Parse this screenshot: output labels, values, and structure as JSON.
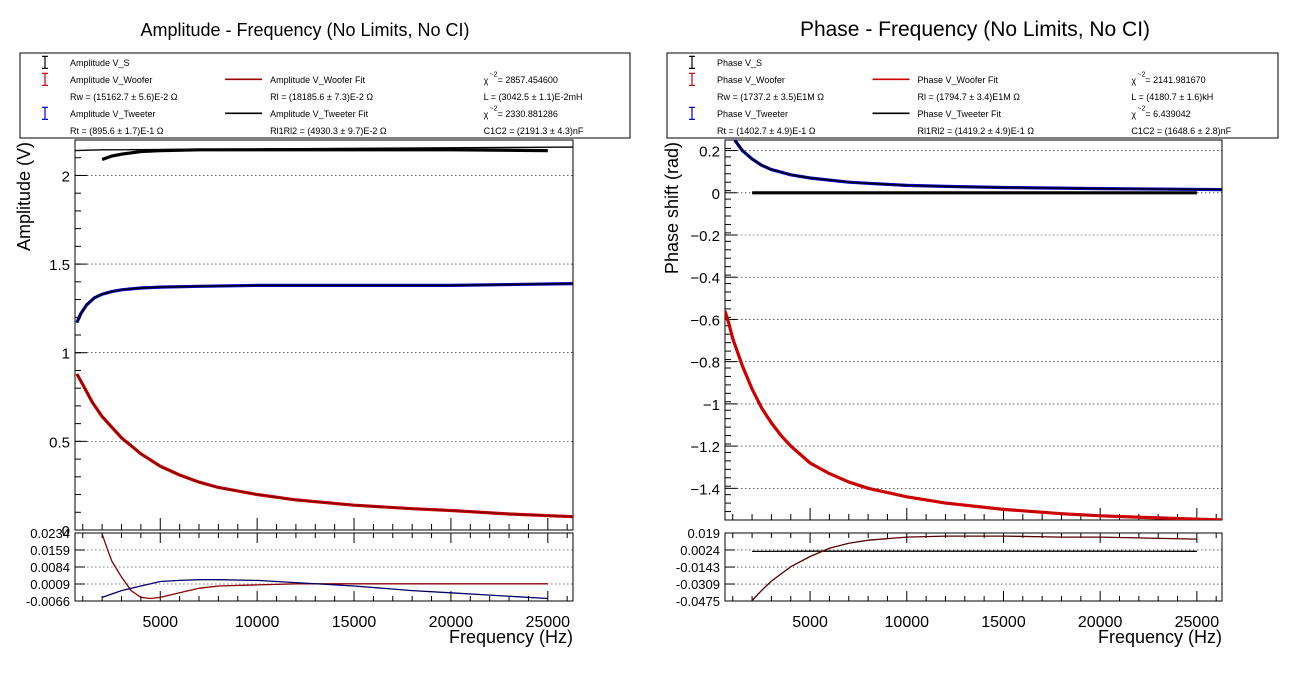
{
  "chart_data": [
    {
      "type": "line",
      "title": "Amplitude - Frequency (No Limits, No CI)",
      "xlabel": "Frequency (Hz)",
      "ylabel": "Amplitude (V)",
      "xlim": [
        600,
        26300
      ],
      "ylim": [
        0,
        2.2
      ],
      "x_ticks": [
        5000,
        10000,
        15000,
        20000,
        25000
      ],
      "x_tick_labels": [
        "5000",
        "10000",
        "15000",
        "20000",
        "25000"
      ],
      "y_ticks": [
        0,
        0.5,
        1,
        1.5,
        2
      ],
      "y_tick_labels": [
        "0",
        "0.5",
        "1",
        "1.5",
        "2"
      ],
      "grid": true,
      "legend_position": "top",
      "legend": {
        "rows": [
          [
            {
              "marker": "err",
              "color": "#000000",
              "text": "Amplitude V_S"
            }
          ],
          [
            {
              "marker": "err",
              "color": "#cc0000",
              "text": "Amplitude V_Woofer"
            },
            {
              "marker": "line",
              "color": "#990000",
              "text": "Amplitude V_Woofer Fit"
            },
            {
              "chi": true,
              "text": "= 2857.454600"
            }
          ],
          [
            {
              "text": "Rw = (15162.7       ± 5.6)E-2   Ω"
            },
            {
              "text": "Rl = (18185.6       ± 7.3)E-2   Ω"
            },
            {
              "text": "L = (3042.5       ± 1.1)E-2mH"
            }
          ],
          [
            {
              "marker": "err",
              "color": "#0000cc",
              "text": "Amplitude V_Tweeter"
            },
            {
              "marker": "line",
              "color": "#000000",
              "text": "Amplitude V_Tweeter Fit"
            },
            {
              "chi": true,
              "text": "= 2330.881286"
            }
          ],
          [
            {
              "text": "Rt = (895.6       ± 1.7)E-1   Ω"
            },
            {
              "text": "Rl1Rl2 = (4930.3       ± 9.7)E-2   Ω"
            },
            {
              "text": "C1C2 = (2191.3       ± 4.3)nF"
            }
          ]
        ]
      },
      "series": [
        {
          "name": "Amplitude V_S",
          "color": "#000000",
          "x": [
            2000,
            2500,
            3000,
            4000,
            5000,
            7000,
            10000,
            15000,
            20000,
            25000
          ],
          "y": [
            2.09,
            2.11,
            2.12,
            2.135,
            2.14,
            2.145,
            2.145,
            2.145,
            2.145,
            2.14
          ]
        },
        {
          "name": "Amplitude V_Tweeter",
          "color": "#0000cc",
          "x": [
            700,
            900,
            1200,
            1600,
            2000,
            2500,
            3000,
            4000,
            5000,
            7000,
            10000,
            15000,
            20000,
            26300
          ],
          "y": [
            1.17,
            1.22,
            1.27,
            1.31,
            1.33,
            1.345,
            1.355,
            1.365,
            1.37,
            1.375,
            1.38,
            1.38,
            1.38,
            1.39
          ]
        },
        {
          "name": "Amplitude V_Woofer",
          "color": "#cc0000",
          "x": [
            700,
            1000,
            1500,
            2000,
            2500,
            3000,
            4000,
            5000,
            6000,
            7000,
            8000,
            10000,
            12000,
            15000,
            18000,
            20000,
            23000,
            26300
          ],
          "y": [
            0.88,
            0.82,
            0.72,
            0.64,
            0.58,
            0.52,
            0.43,
            0.36,
            0.31,
            0.27,
            0.24,
            0.2,
            0.17,
            0.14,
            0.12,
            0.11,
            0.09,
            0.075
          ]
        },
        {
          "name": "Amplitude V_Woofer Fit",
          "color": "#880000",
          "x": [
            700,
            1000,
            1500,
            2000,
            2500,
            3000,
            4000,
            5000,
            6000,
            7000,
            8000,
            10000,
            12000,
            15000,
            18000,
            20000,
            23000,
            26300
          ],
          "y": [
            0.88,
            0.82,
            0.72,
            0.64,
            0.58,
            0.52,
            0.43,
            0.36,
            0.31,
            0.27,
            0.24,
            0.2,
            0.17,
            0.14,
            0.12,
            0.11,
            0.09,
            0.075
          ]
        },
        {
          "name": "Amplitude V_Tweeter Fit",
          "color": "#000000",
          "x": [
            700,
            900,
            1200,
            1600,
            2000,
            2500,
            3000,
            4000,
            5000,
            7000,
            10000,
            15000,
            20000,
            26300
          ],
          "y": [
            1.17,
            1.22,
            1.27,
            1.31,
            1.33,
            1.345,
            1.355,
            1.365,
            1.37,
            1.375,
            1.38,
            1.38,
            1.38,
            1.39
          ]
        },
        {
          "name": "Amplitude V_S Fit",
          "color": "#000000",
          "x": [
            600,
            2000,
            26300
          ],
          "y": [
            2.14,
            2.145,
            2.16
          ]
        }
      ],
      "residual": {
        "ylim": [
          -0.0066,
          0.0234
        ],
        "y_ticks": [
          -0.0066,
          0.0009,
          0.0084,
          0.0159,
          0.0234
        ],
        "y_tick_labels": [
          "-0.0066",
          "0.0009",
          "0.0084",
          "0.0159",
          "0.0234"
        ],
        "series": [
          {
            "color": "#880000",
            "x": [
              2000,
              2200,
              2500,
              3000,
              3500,
              4000,
              4500,
              5000,
              6000,
              7000,
              8000,
              10000,
              12000,
              15000,
              20000,
              25000
            ],
            "y": [
              0.023,
              0.018,
              0.011,
              0.004,
              -0.002,
              -0.005,
              -0.0055,
              -0.005,
              -0.003,
              -0.001,
              0.0,
              0.0005,
              0.001,
              0.001,
              0.001,
              0.001
            ]
          },
          {
            "color": "#000066",
            "x": [
              2000,
              3000,
              4000,
              5000,
              6000,
              7000,
              8000,
              10000,
              12000,
              15000,
              18000,
              20000,
              22000,
              25000
            ],
            "y": [
              -0.005,
              -0.002,
              0.0,
              0.002,
              0.0025,
              0.0028,
              0.0028,
              0.0025,
              0.0015,
              0.0,
              -0.002,
              -0.003,
              -0.004,
              -0.0055
            ]
          }
        ]
      }
    },
    {
      "type": "line",
      "title": "Phase - Frequency (No Limits, No CI)",
      "xlabel": "Frequency (Hz)",
      "ylabel": "Phase shift (rad)",
      "xlim": [
        600,
        26300
      ],
      "ylim": [
        -1.55,
        0.25
      ],
      "x_ticks": [
        5000,
        10000,
        15000,
        20000,
        25000
      ],
      "x_tick_labels": [
        "5000",
        "10000",
        "15000",
        "20000",
        "25000"
      ],
      "y_ticks": [
        0.2,
        0,
        -0.2,
        -0.4,
        -0.6,
        -0.8,
        -1,
        -1.2,
        -1.4
      ],
      "y_tick_labels": [
        "0.2",
        "0",
        "−0.2",
        "−0.4",
        "−0.6",
        "−0.8",
        "−1",
        "−1.2",
        "−1.4"
      ],
      "grid": true,
      "legend_position": "top",
      "legend": {
        "rows": [
          [
            {
              "marker": "err",
              "color": "#000000",
              "text": "Phase V_S"
            }
          ],
          [
            {
              "marker": "err",
              "color": "#cc0000",
              "text": "Phase V_Woofer"
            },
            {
              "marker": "line",
              "color": "#cc0000",
              "text": "Phase V_Woofer Fit"
            },
            {
              "chi": true,
              "text": "= 2141.981670"
            }
          ],
          [
            {
              "text": "Rw = (1737.2       ± 3.5)E1M   Ω"
            },
            {
              "text": "Rl = (1794.7       ± 3.4)E1M   Ω"
            },
            {
              "text": "L = (4180.7       ± 1.6)kH"
            }
          ],
          [
            {
              "marker": "err",
              "color": "#0000cc",
              "text": "Phase V_Tweeter"
            },
            {
              "marker": "line",
              "color": "#000000",
              "text": "Phase V_Tweeter Fit"
            },
            {
              "chi": true,
              "text": "= 6.439042"
            }
          ],
          [
            {
              "text": "Rt = (1402.7       ± 4.9)E-1   Ω"
            },
            {
              "text": "Rl1Rl2 = (1419.2       ± 4.9)E-1   Ω"
            },
            {
              "text": "C1C2 = (1648.6       ± 2.8)nF"
            }
          ]
        ]
      },
      "series": [
        {
          "name": "Phase V_S",
          "color": "#000000",
          "x": [
            2000,
            5000,
            10000,
            15000,
            20000,
            25000
          ],
          "y": [
            0.0,
            0.0,
            0.0,
            0.0,
            0.0,
            0.0
          ]
        },
        {
          "name": "Phase V_Tweeter",
          "color": "#0000cc",
          "x": [
            1100,
            1500,
            2000,
            2500,
            3000,
            4000,
            5000,
            6000,
            7000,
            8000,
            10000,
            12000,
            15000,
            20000,
            26300
          ],
          "y": [
            0.25,
            0.2,
            0.16,
            0.13,
            0.11,
            0.085,
            0.07,
            0.06,
            0.05,
            0.045,
            0.035,
            0.03,
            0.025,
            0.02,
            0.015
          ]
        },
        {
          "name": "Phase V_Woofer",
          "color": "#cc0000",
          "x": [
            600,
            800,
            1000,
            1500,
            2000,
            2500,
            3000,
            3500,
            4000,
            5000,
            6000,
            7000,
            8000,
            10000,
            12000,
            15000,
            18000,
            20000,
            23000,
            26300
          ],
          "y": [
            -0.56,
            -0.62,
            -0.69,
            -0.82,
            -0.93,
            -1.02,
            -1.09,
            -1.15,
            -1.2,
            -1.28,
            -1.33,
            -1.37,
            -1.4,
            -1.44,
            -1.47,
            -1.5,
            -1.52,
            -1.53,
            -1.54,
            -1.55
          ]
        },
        {
          "name": "Phase V_Woofer Fit",
          "color": "#cc0000",
          "x": [
            600,
            800,
            1000,
            1500,
            2000,
            2500,
            3000,
            3500,
            4000,
            5000,
            6000,
            7000,
            8000,
            10000,
            12000,
            15000,
            18000,
            20000,
            23000,
            26300
          ],
          "y": [
            -0.56,
            -0.62,
            -0.69,
            -0.82,
            -0.93,
            -1.02,
            -1.09,
            -1.15,
            -1.2,
            -1.28,
            -1.33,
            -1.37,
            -1.4,
            -1.44,
            -1.47,
            -1.5,
            -1.52,
            -1.53,
            -1.54,
            -1.55
          ]
        },
        {
          "name": "Phase V_Tweeter Fit",
          "color": "#000000",
          "x": [
            1100,
            1500,
            2000,
            2500,
            3000,
            4000,
            5000,
            6000,
            7000,
            8000,
            10000,
            12000,
            15000,
            20000,
            26300
          ],
          "y": [
            0.25,
            0.2,
            0.16,
            0.13,
            0.11,
            0.085,
            0.07,
            0.06,
            0.05,
            0.045,
            0.035,
            0.03,
            0.025,
            0.02,
            0.015
          ]
        }
      ],
      "residual": {
        "ylim": [
          -0.0475,
          0.019
        ],
        "y_ticks": [
          -0.0475,
          -0.0309,
          -0.0143,
          0.0024,
          0.019
        ],
        "y_tick_labels": [
          "-0.0475",
          "-0.0309",
          "-0.0143",
          "0.0024",
          "0.019"
        ],
        "series": [
          {
            "color": "#000000",
            "x": [
              2000,
              5000,
              10000,
              15000,
              20000,
              25000
            ],
            "y": [
              0.001,
              0.0012,
              0.0012,
              0.0012,
              0.0012,
              0.0011
            ]
          },
          {
            "color": "#550000",
            "x": [
              2000,
              2500,
              3000,
              3500,
              4000,
              5000,
              6000,
              7000,
              8000,
              10000,
              12000,
              15000,
              18000,
              20000,
              25000
            ],
            "y": [
              -0.047,
              -0.037,
              -0.028,
              -0.021,
              -0.014,
              -0.004,
              0.004,
              0.009,
              0.012,
              0.015,
              0.016,
              0.016,
              0.015,
              0.015,
              0.013
            ]
          }
        ]
      }
    }
  ]
}
